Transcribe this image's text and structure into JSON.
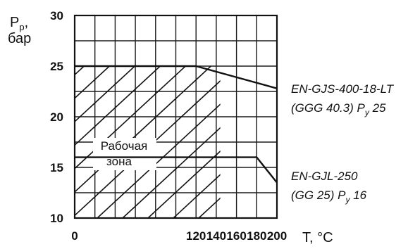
{
  "chart_data": {
    "type": "line",
    "xlabel": "T, °C",
    "ylabel_main": "P",
    "ylabel_sub": "p",
    "ylabel_suffix": ",",
    "ylabel_unit": "бар",
    "xlim": [
      0,
      200
    ],
    "ylim": [
      10,
      30
    ],
    "x_ticks": [
      0,
      20,
      40,
      60,
      80,
      100,
      120,
      140,
      160,
      180,
      200
    ],
    "x_tick_labels": [
      "0",
      "",
      "",
      "",
      "",
      "",
      "120",
      "140",
      "160",
      "180",
      "200"
    ],
    "y_ticks": [
      10,
      12.5,
      15,
      17.5,
      20,
      22.5,
      25,
      27.5,
      30
    ],
    "y_tick_labels": [
      "10",
      "",
      "15",
      "",
      "20",
      "",
      "25",
      "",
      "30"
    ],
    "grid": true,
    "series": [
      {
        "label_line1": "EN-GJS-400-18-LT",
        "label_line2_main": "(GGG 40.3) P",
        "label_line2_sub": "y",
        "label_line2_tail": " 25",
        "x": [
          0,
          120,
          200
        ],
        "y": [
          25,
          25,
          22.8
        ]
      },
      {
        "label_line1": "EN-GJL-250",
        "label_line2_main": "(GG 25) P",
        "label_line2_sub": "y",
        "label_line2_tail": " 16",
        "x": [
          0,
          180,
          200
        ],
        "y": [
          16,
          16,
          13.5
        ]
      }
    ],
    "zone_label_line1": "Рабочая",
    "zone_label_line2": "зона"
  }
}
